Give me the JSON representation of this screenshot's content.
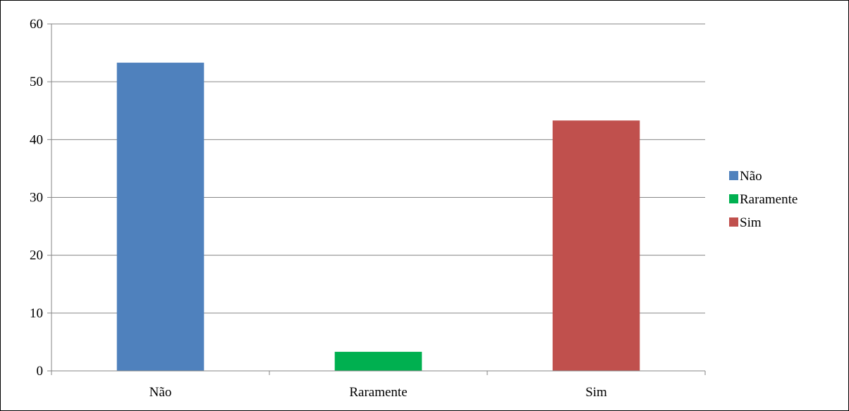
{
  "chart_data": {
    "type": "bar",
    "categories": [
      "Não",
      "Raramente",
      "Sim"
    ],
    "series": [
      {
        "name": "Não",
        "values": [
          53.3,
          null,
          null
        ],
        "color": "#4F81BD"
      },
      {
        "name": "Raramente",
        "values": [
          null,
          3.3,
          null
        ],
        "color": "#00B050"
      },
      {
        "name": "Sim",
        "values": [
          null,
          null,
          43.3
        ],
        "color": "#C0504D"
      }
    ],
    "values": [
      53.3,
      3.3,
      43.3
    ],
    "colors": [
      "#4F81BD",
      "#00B050",
      "#C0504D"
    ],
    "title": "",
    "xlabel": "",
    "ylabel": "",
    "ylim": [
      0,
      60
    ],
    "yticks": [
      "0",
      "10",
      "20",
      "30",
      "40",
      "50",
      "60"
    ],
    "grid": true,
    "legend": {
      "position": "right",
      "entries": [
        "Não",
        "Raramente",
        "Sim"
      ]
    }
  }
}
